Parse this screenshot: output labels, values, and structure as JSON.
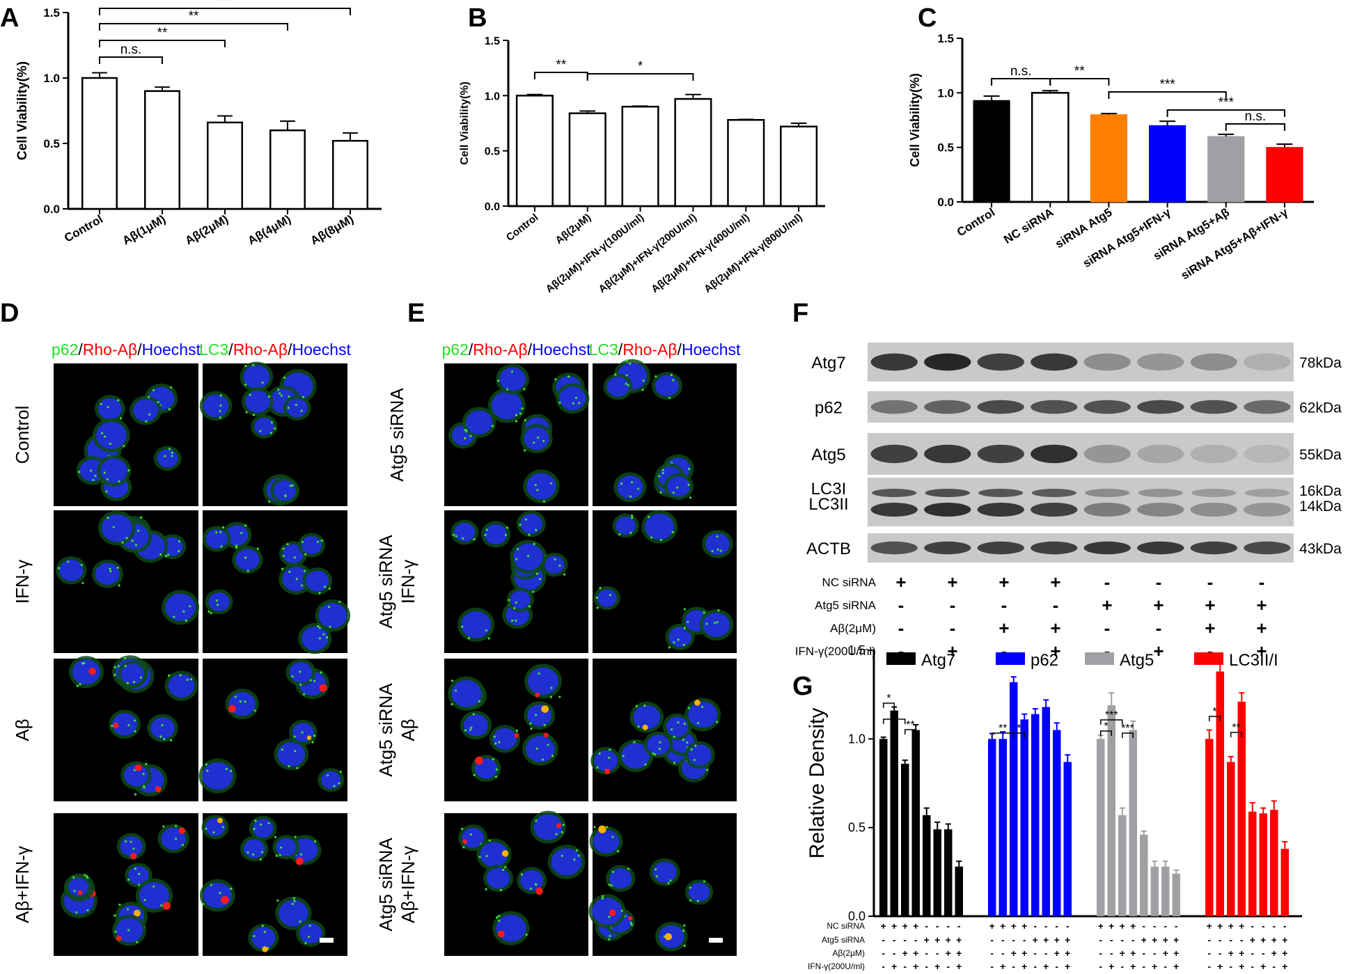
{
  "panel_letters": [
    "A",
    "B",
    "C",
    "D",
    "E",
    "F",
    "G"
  ],
  "chart_data": [
    {
      "panel": "A",
      "type": "bar",
      "ylabel": "Cell Viability(%)",
      "xlabel": "",
      "ylim": [
        0,
        1.5
      ],
      "yticks": [
        "0.0",
        "0.5",
        "1.0",
        "1.5"
      ],
      "categories": [
        "Control",
        "Aβ(1μM)",
        "Aβ(2μM)",
        "Aβ(4μM)",
        "Aβ(8μM)"
      ],
      "values": [
        1.0,
        0.9,
        0.66,
        0.6,
        0.52
      ],
      "errors": [
        0.04,
        0.03,
        0.05,
        0.07,
        0.06
      ],
      "colors": [
        "#ffffff",
        "#ffffff",
        "#ffffff",
        "#ffffff",
        "#ffffff"
      ],
      "significance": [
        {
          "from": 0,
          "to": 1,
          "label": "n.s."
        },
        {
          "from": 0,
          "to": 2,
          "label": "**"
        },
        {
          "from": 0,
          "to": 3,
          "label": "**"
        },
        {
          "from": 0,
          "to": 4,
          "label": "***"
        }
      ]
    },
    {
      "panel": "B",
      "type": "bar",
      "ylabel": "Cell Viability(%)",
      "xlabel": "",
      "ylim": [
        0,
        1.5
      ],
      "yticks": [
        "0.0",
        "0.5",
        "1.0",
        "1.5"
      ],
      "categories": [
        "Control",
        "Aβ(2μM)",
        "Aβ(2μM)+IFN-γ(100U/ml)",
        "Aβ(2μM)+IFN-γ(200U/ml)",
        "Aβ(2μM)+IFN-γ(400U/ml)",
        "Aβ(2μM)+IFN-γ(800U/ml)"
      ],
      "values": [
        1.0,
        0.84,
        0.9,
        0.97,
        0.78,
        0.72
      ],
      "errors": [
        0.01,
        0.02,
        0.005,
        0.04,
        0.005,
        0.03
      ],
      "colors": [
        "#ffffff",
        "#ffffff",
        "#ffffff",
        "#ffffff",
        "#ffffff",
        "#ffffff"
      ],
      "significance": [
        {
          "from": 0,
          "to": 1,
          "label": "**"
        },
        {
          "from": 1,
          "to": 3,
          "label": "*"
        }
      ]
    },
    {
      "panel": "C",
      "type": "bar",
      "ylabel": "Cell Viability(%)",
      "xlabel": "",
      "ylim": [
        0,
        1.5
      ],
      "yticks": [
        "0.0",
        "0.5",
        "1.0",
        "1.5"
      ],
      "categories": [
        "Control",
        "NC siRNA",
        "siRNA Atg5",
        "siRNA Atg5+IFN-γ",
        "siRNA Atg5+Aβ",
        "siRNA Atg5+Aβ+IFN-γ"
      ],
      "values": [
        0.93,
        1.0,
        0.8,
        0.7,
        0.6,
        0.5
      ],
      "errors": [
        0.04,
        0.02,
        0.01,
        0.04,
        0.02,
        0.03
      ],
      "colors": [
        "#000000",
        "#ffffff",
        "#ff7f00",
        "#0000ff",
        "#a0a0a4",
        "#ff0000"
      ],
      "significance": [
        {
          "from": 0,
          "to": 1,
          "label": "n.s."
        },
        {
          "from": 1,
          "to": 2,
          "label": "**"
        },
        {
          "from": 2,
          "to": 4,
          "label": "***"
        },
        {
          "from": 3,
          "to": 5,
          "label": "***"
        },
        {
          "from": 4,
          "to": 5,
          "label": "n.s."
        }
      ]
    },
    {
      "panel": "G",
      "type": "bar",
      "ylabel": "Relative Density",
      "xlabel": "",
      "ylim": [
        0,
        1.5
      ],
      "yticks": [
        "0.0",
        "0.5",
        "1.0",
        "1.5"
      ],
      "legend": "top",
      "series": [
        {
          "name": "Atg7",
          "color": "#000000",
          "values": [
            1.0,
            1.16,
            0.86,
            1.05,
            0.57,
            0.49,
            0.49,
            0.28
          ],
          "errors": [
            0.01,
            0.02,
            0.02,
            0.03,
            0.04,
            0.04,
            0.03,
            0.03
          ]
        },
        {
          "name": "p62",
          "color": "#0000ff",
          "values": [
            1.0,
            1.0,
            1.32,
            1.11,
            1.14,
            1.18,
            1.05,
            0.87
          ],
          "errors": [
            0.03,
            0.04,
            0.03,
            0.03,
            0.03,
            0.04,
            0.04,
            0.04
          ]
        },
        {
          "name": "Atg5",
          "color": "#a0a0a4",
          "values": [
            1.0,
            1.19,
            0.57,
            1.05,
            0.46,
            0.28,
            0.28,
            0.24
          ],
          "errors": [
            0.02,
            0.07,
            0.04,
            0.05,
            0.02,
            0.03,
            0.03,
            0.02
          ]
        },
        {
          "name": "LC3II/I",
          "color": "#ff0000",
          "values": [
            1.0,
            1.38,
            0.87,
            1.21,
            0.59,
            0.58,
            0.6,
            0.38
          ],
          "errors": [
            0.05,
            0.05,
            0.03,
            0.05,
            0.05,
            0.03,
            0.05,
            0.04
          ]
        }
      ],
      "significance": [
        {
          "series": 0,
          "from": 0,
          "to": 1,
          "label": "*"
        },
        {
          "series": 0,
          "from": 0,
          "to": 2,
          "label": "*"
        },
        {
          "series": 0,
          "from": 2,
          "to": 3,
          "label": "**"
        },
        {
          "series": 1,
          "from": 0,
          "to": 2,
          "label": "**"
        },
        {
          "series": 1,
          "from": 2,
          "to": 3,
          "label": "*"
        },
        {
          "series": 2,
          "from": 0,
          "to": 1,
          "label": "*"
        },
        {
          "series": 2,
          "from": 0,
          "to": 2,
          "label": "***"
        },
        {
          "series": 2,
          "from": 2,
          "to": 3,
          "label": "***"
        },
        {
          "series": 3,
          "from": 0,
          "to": 1,
          "label": "*"
        },
        {
          "series": 3,
          "from": 2,
          "to": 3,
          "label": "**"
        }
      ],
      "condition_rows": [
        {
          "label": "NC siRNA",
          "signs": [
            "+",
            "+",
            "+",
            "+",
            "-",
            "-",
            "-",
            "-"
          ]
        },
        {
          "label": "Atg5 siRNA",
          "signs": [
            "-",
            "-",
            "-",
            "-",
            "+",
            "+",
            "+",
            "+"
          ]
        },
        {
          "label": "Aβ(2μM)",
          "signs": [
            "-",
            "-",
            "+",
            "+",
            "-",
            "-",
            "+",
            "+"
          ]
        },
        {
          "label": "IFN-γ(200U/ml)",
          "signs": [
            "-",
            "+",
            "-",
            "+",
            "-",
            "+",
            "-",
            "+"
          ]
        }
      ]
    }
  ],
  "microscopy_D": {
    "stain_headers": [
      [
        {
          "text": "p62",
          "color": "#22dd22"
        },
        {
          "text": "/",
          "color": "#000000"
        },
        {
          "text": "Rho-Aβ",
          "color": "#ff0000"
        },
        {
          "text": "/",
          "color": "#000000"
        },
        {
          "text": "Hoechst",
          "color": "#0000ff"
        }
      ],
      [
        {
          "text": "LC3",
          "color": "#22dd22"
        },
        {
          "text": "/",
          "color": "#000000"
        },
        {
          "text": "Rho-Aβ",
          "color": "#ff0000"
        },
        {
          "text": "/",
          "color": "#000000"
        },
        {
          "text": "Hoechst",
          "color": "#0000ff"
        }
      ]
    ],
    "row_labels": [
      [
        "Control"
      ],
      [
        "IFN-γ"
      ],
      [
        "Aβ"
      ],
      [
        "Aβ+IFN-γ"
      ]
    ]
  },
  "microscopy_E": {
    "stain_headers": [
      [
        {
          "text": "p62",
          "color": "#22dd22"
        },
        {
          "text": "/",
          "color": "#000000"
        },
        {
          "text": "Rho-Aβ",
          "color": "#ff0000"
        },
        {
          "text": "/",
          "color": "#000000"
        },
        {
          "text": "Hoechst",
          "color": "#0000ff"
        }
      ],
      [
        {
          "text": "LC3",
          "color": "#22dd22"
        },
        {
          "text": "/",
          "color": "#000000"
        },
        {
          "text": "Rho-Aβ",
          "color": "#ff0000"
        },
        {
          "text": "/",
          "color": "#000000"
        },
        {
          "text": "Hoechst",
          "color": "#0000ff"
        }
      ]
    ],
    "row_labels": [
      [
        "Atg5 siRNA"
      ],
      [
        "Atg5 siRNA",
        "IFN-γ"
      ],
      [
        "Atg5 siRNA",
        "Aβ"
      ],
      [
        "Atg5 siRNA",
        "Aβ+IFN-γ"
      ]
    ]
  },
  "western_blot_F": {
    "rows": [
      {
        "protein": [
          "Atg7"
        ],
        "weight": [
          "78kDa"
        ],
        "intensity": [
          0.85,
          0.95,
          0.8,
          0.85,
          0.35,
          0.3,
          0.35,
          0.15
        ]
      },
      {
        "protein": [
          "p62"
        ],
        "weight": [
          "62kDa"
        ],
        "intensity": [
          0.5,
          0.6,
          0.75,
          0.7,
          0.7,
          0.75,
          0.7,
          0.55
        ]
      },
      {
        "protein": [
          "Atg5"
        ],
        "weight": [
          "55kDa"
        ],
        "intensity": [
          0.8,
          0.85,
          0.8,
          0.9,
          0.3,
          0.2,
          0.15,
          0.1
        ]
      },
      {
        "protein": [
          "LC3I",
          "LC3II"
        ],
        "weight": [
          "16kDa",
          "14kDa"
        ],
        "intensity": [
          0.85,
          0.9,
          0.85,
          0.8,
          0.45,
          0.4,
          0.35,
          0.3
        ]
      },
      {
        "protein": [
          "ACTB"
        ],
        "weight": [
          "43kDa"
        ],
        "intensity": [
          0.7,
          0.8,
          0.8,
          0.8,
          0.85,
          0.85,
          0.8,
          0.75
        ]
      }
    ],
    "condition_rows": [
      {
        "label": "NC siRNA",
        "signs": [
          "+",
          "+",
          "+",
          "+",
          "-",
          "-",
          "-",
          "-"
        ]
      },
      {
        "label": "Atg5 siRNA",
        "signs": [
          "-",
          "-",
          "-",
          "-",
          "+",
          "+",
          "+",
          "+"
        ]
      },
      {
        "label": "Aβ(2μM)",
        "signs": [
          "-",
          "-",
          "+",
          "+",
          "-",
          "-",
          "+",
          "+"
        ]
      },
      {
        "label": "IFN-γ(200U/ml)",
        "signs": [
          "-",
          "+",
          "-",
          "+",
          "-",
          "+",
          "-",
          "+"
        ]
      }
    ]
  }
}
